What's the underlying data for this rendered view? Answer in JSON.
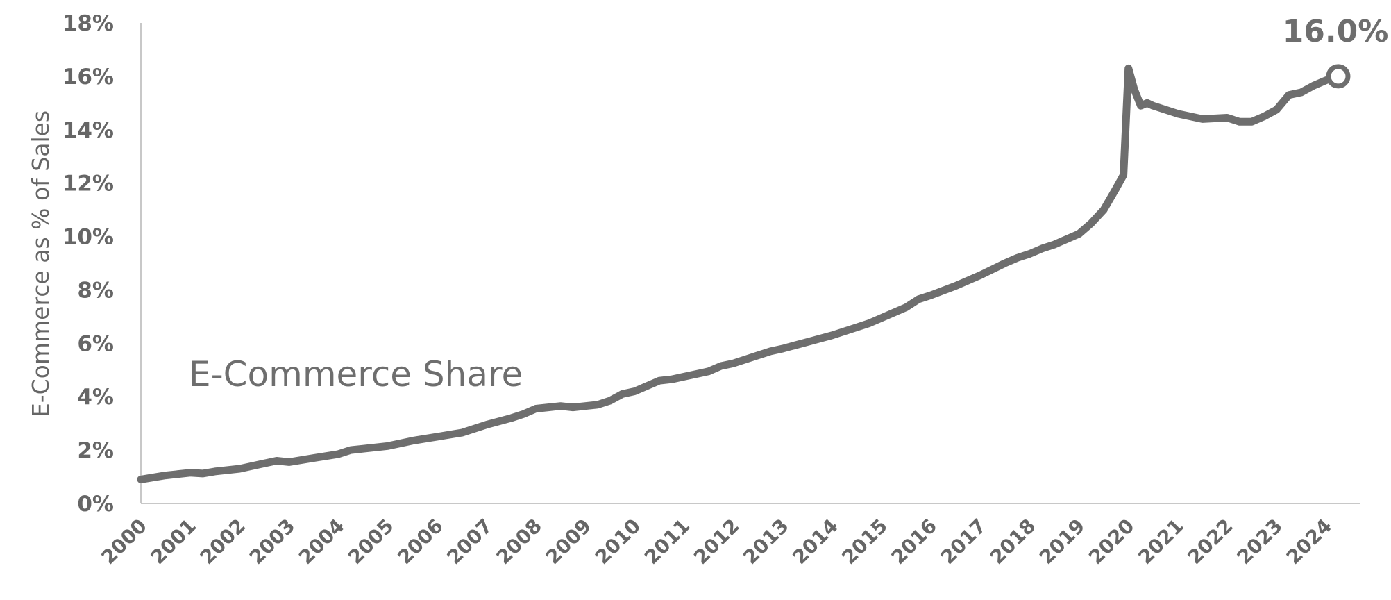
{
  "chart_data": {
    "type": "line",
    "ylabel": "E-Commerce as % of Sales",
    "ylim": [
      0,
      18
    ],
    "yticks": [
      "0%",
      "2%",
      "4%",
      "6%",
      "8%",
      "10%",
      "12%",
      "14%",
      "16%",
      "18%"
    ],
    "xlim": [
      2000,
      2024.7
    ],
    "xticks": [
      "2000",
      "2001",
      "2002",
      "2003",
      "2004",
      "2005",
      "2006",
      "2007",
      "2008",
      "2009",
      "2010",
      "2011",
      "2012",
      "2013",
      "2014",
      "2015",
      "2016",
      "2017",
      "2018",
      "2019",
      "2020",
      "2021",
      "2022",
      "2023",
      "2024"
    ],
    "grid": false,
    "series": [
      {
        "name": "E-Commerce Share",
        "color": "#6e6e6e",
        "end_label": "16.0%",
        "x": [
          2000.0,
          2000.5,
          2001.0,
          2001.25,
          2001.5,
          2002.0,
          2002.5,
          2002.75,
          2003.0,
          2003.5,
          2004.0,
          2004.25,
          2004.5,
          2005.0,
          2005.5,
          2006.0,
          2006.5,
          2007.0,
          2007.5,
          2007.75,
          2008.0,
          2008.25,
          2008.5,
          2008.75,
          2009.0,
          2009.25,
          2009.5,
          2009.75,
          2010.0,
          2010.5,
          2010.75,
          2011.0,
          2011.5,
          2011.75,
          2012.0,
          2012.5,
          2012.75,
          2013.0,
          2013.5,
          2014.0,
          2014.5,
          2014.75,
          2015.0,
          2015.5,
          2015.75,
          2016.0,
          2016.5,
          2017.0,
          2017.5,
          2017.75,
          2018.0,
          2018.25,
          2018.5,
          2019.0,
          2019.25,
          2019.5,
          2019.75,
          2019.9,
          2020.0,
          2020.12,
          2020.25,
          2020.38,
          2020.5,
          2021.0,
          2021.5,
          2022.0,
          2022.25,
          2022.5,
          2022.75,
          2023.0,
          2023.25,
          2023.5,
          2023.75,
          2024.0,
          2024.25
        ],
        "values": [
          0.9,
          1.05,
          1.15,
          1.12,
          1.2,
          1.3,
          1.5,
          1.6,
          1.55,
          1.7,
          1.85,
          2.0,
          2.05,
          2.15,
          2.35,
          2.5,
          2.65,
          2.95,
          3.2,
          3.35,
          3.55,
          3.6,
          3.65,
          3.6,
          3.65,
          3.7,
          3.85,
          4.1,
          4.2,
          4.6,
          4.65,
          4.75,
          4.95,
          5.15,
          5.25,
          5.55,
          5.7,
          5.8,
          6.05,
          6.3,
          6.6,
          6.75,
          6.95,
          7.35,
          7.65,
          7.8,
          8.15,
          8.55,
          9.0,
          9.2,
          9.35,
          9.55,
          9.7,
          10.1,
          10.5,
          11.0,
          11.8,
          12.3,
          16.3,
          15.5,
          14.9,
          15.0,
          14.9,
          14.6,
          14.4,
          14.45,
          14.3,
          14.3,
          14.5,
          14.75,
          15.3,
          15.4,
          15.65,
          15.85,
          16.0
        ]
      }
    ]
  }
}
